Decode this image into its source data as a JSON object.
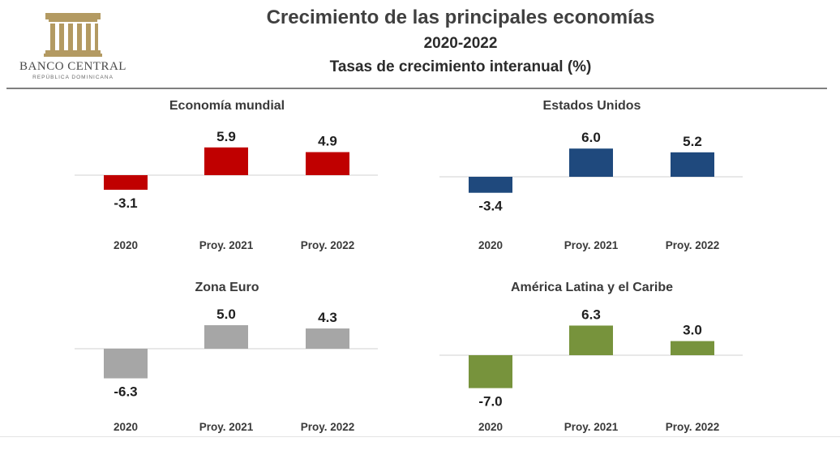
{
  "header": {
    "title": "Crecimiento de las principales economías",
    "period": "2020-2022",
    "subtitle": "Tasas de crecimiento interanual (%)"
  },
  "logo": {
    "name": "BANCO CENTRAL",
    "sub": "REPÚBLICA DOMINICANA",
    "color": "#b39a62"
  },
  "chart_data": [
    {
      "type": "bar",
      "title": "Economía mundial",
      "categories": [
        "2020",
        "Proy. 2021",
        "Proy. 2022"
      ],
      "values": [
        -3.1,
        5.9,
        4.9
      ],
      "labels": [
        "-3.1",
        "5.9",
        "4.9"
      ],
      "color": "#c00000"
    },
    {
      "type": "bar",
      "title": "Estados Unidos",
      "categories": [
        "2020",
        "Proy. 2021",
        "Proy. 2022"
      ],
      "values": [
        -3.4,
        6.0,
        5.2
      ],
      "labels": [
        "-3.4",
        "6.0",
        "5.2"
      ],
      "color": "#1f497d"
    },
    {
      "type": "bar",
      "title": "Zona Euro",
      "categories": [
        "2020",
        "Proy. 2021",
        "Proy. 2022"
      ],
      "values": [
        -6.3,
        5.0,
        4.3
      ],
      "labels": [
        "-6.3",
        "5.0",
        "4.3"
      ],
      "color": "#a6a6a6"
    },
    {
      "type": "bar",
      "title": "América Latina y el Caribe",
      "categories": [
        "2020",
        "Proy. 2021",
        "Proy. 2022"
      ],
      "values": [
        -7.0,
        6.3,
        3.0
      ],
      "labels": [
        "-7.0",
        "6.3",
        "3.0"
      ],
      "color": "#77933c"
    }
  ]
}
